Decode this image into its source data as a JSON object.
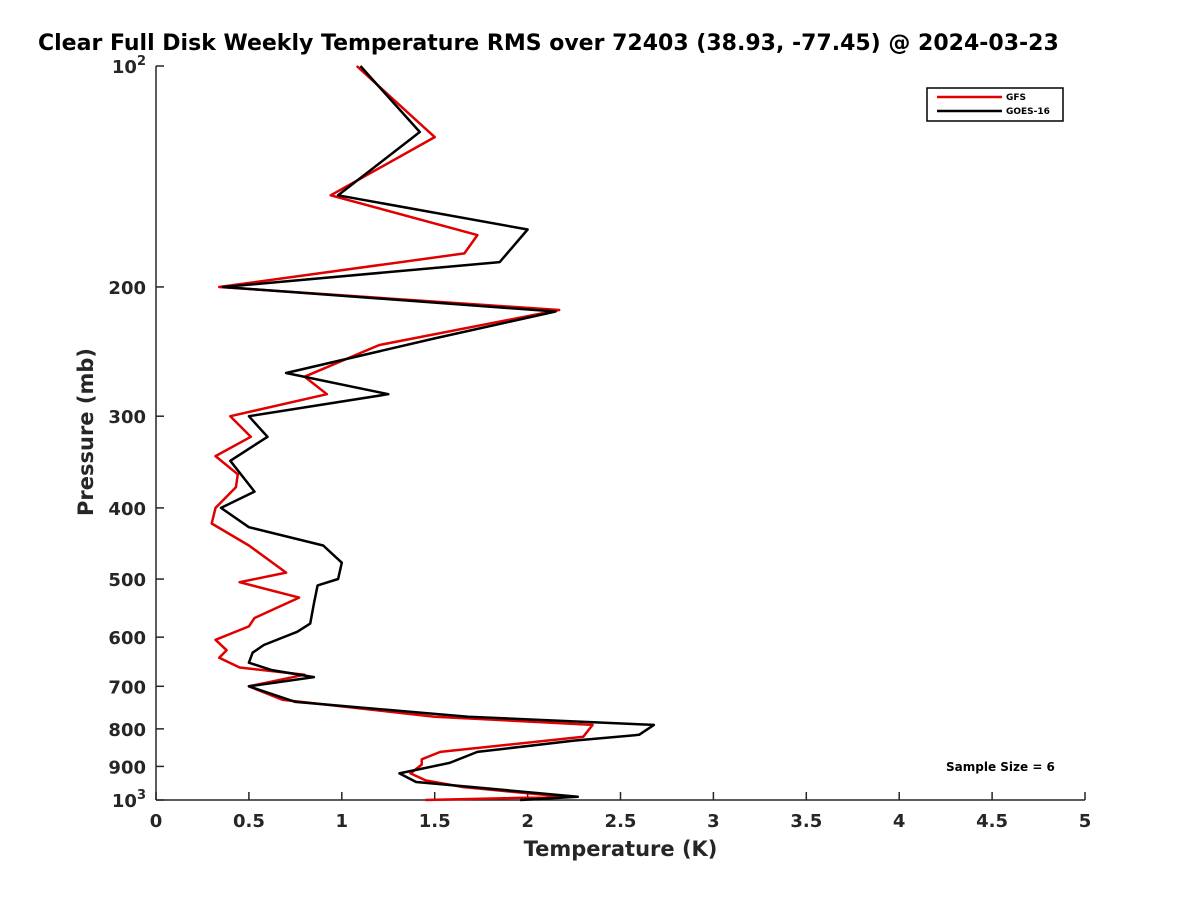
{
  "chart_data": {
    "type": "line",
    "title": "Clear Full Disk Weekly Temperature RMS over 72403 (38.93, -77.45) @ 2024-03-23",
    "xlabel": "Temperature (K)",
    "ylabel": "Pressure (mb)",
    "xlim": [
      0,
      5
    ],
    "ylim": [
      100,
      1000
    ],
    "y_scale": "log",
    "y_reversed": true,
    "x_ticks": [
      "0",
      "0.5",
      "1",
      "1.5",
      "2",
      "2.5",
      "3",
      "3.5",
      "4",
      "4.5",
      "5"
    ],
    "y_ticks": [
      {
        "value": 100,
        "base": "10",
        "exp": "2"
      },
      {
        "value": 200,
        "label": "200"
      },
      {
        "value": 300,
        "label": "300"
      },
      {
        "value": 400,
        "label": "400"
      },
      {
        "value": 500,
        "label": "500"
      },
      {
        "value": 600,
        "label": "600"
      },
      {
        "value": 700,
        "label": "700"
      },
      {
        "value": 800,
        "label": "800"
      },
      {
        "value": 900,
        "label": "900"
      },
      {
        "value": 1000,
        "base": "10",
        "exp": "3"
      }
    ],
    "grid": false,
    "legend_position": "top-right",
    "annotations": [
      "Sample Size = 6"
    ],
    "series": [
      {
        "name": "GFS",
        "color": "#e00000",
        "points": [
          {
            "x": 1.08,
            "p": 100
          },
          {
            "x": 1.5,
            "p": 125
          },
          {
            "x": 0.94,
            "p": 150
          },
          {
            "x": 1.73,
            "p": 170
          },
          {
            "x": 1.66,
            "p": 180
          },
          {
            "x": 0.34,
            "p": 200
          },
          {
            "x": 2.17,
            "p": 215
          },
          {
            "x": 1.2,
            "p": 240
          },
          {
            "x": 0.8,
            "p": 265
          },
          {
            "x": 0.92,
            "p": 280
          },
          {
            "x": 0.4,
            "p": 300
          },
          {
            "x": 0.51,
            "p": 320
          },
          {
            "x": 0.32,
            "p": 340
          },
          {
            "x": 0.44,
            "p": 360
          },
          {
            "x": 0.43,
            "p": 375
          },
          {
            "x": 0.32,
            "p": 400
          },
          {
            "x": 0.3,
            "p": 420
          },
          {
            "x": 0.5,
            "p": 450
          },
          {
            "x": 0.7,
            "p": 490
          },
          {
            "x": 0.45,
            "p": 505
          },
          {
            "x": 0.77,
            "p": 530
          },
          {
            "x": 0.53,
            "p": 565
          },
          {
            "x": 0.5,
            "p": 580
          },
          {
            "x": 0.32,
            "p": 605
          },
          {
            "x": 0.38,
            "p": 625
          },
          {
            "x": 0.34,
            "p": 640
          },
          {
            "x": 0.45,
            "p": 660
          },
          {
            "x": 0.8,
            "p": 675
          },
          {
            "x": 0.5,
            "p": 700
          },
          {
            "x": 0.68,
            "p": 730
          },
          {
            "x": 1.5,
            "p": 770
          },
          {
            "x": 2.35,
            "p": 790
          },
          {
            "x": 2.3,
            "p": 820
          },
          {
            "x": 1.53,
            "p": 860
          },
          {
            "x": 1.43,
            "p": 880
          },
          {
            "x": 1.43,
            "p": 895
          },
          {
            "x": 1.37,
            "p": 920
          },
          {
            "x": 1.45,
            "p": 940
          },
          {
            "x": 1.65,
            "p": 960
          },
          {
            "x": 2.2,
            "p": 990
          },
          {
            "x": 1.45,
            "p": 1000
          }
        ]
      },
      {
        "name": "GOES-16",
        "color": "#000000",
        "points": [
          {
            "x": 1.1,
            "p": 100
          },
          {
            "x": 1.42,
            "p": 123
          },
          {
            "x": 0.98,
            "p": 150
          },
          {
            "x": 2.0,
            "p": 167
          },
          {
            "x": 1.85,
            "p": 185
          },
          {
            "x": 0.36,
            "p": 200
          },
          {
            "x": 2.15,
            "p": 216
          },
          {
            "x": 1.5,
            "p": 235
          },
          {
            "x": 0.7,
            "p": 262
          },
          {
            "x": 1.25,
            "p": 280
          },
          {
            "x": 0.5,
            "p": 300
          },
          {
            "x": 0.6,
            "p": 320
          },
          {
            "x": 0.4,
            "p": 345
          },
          {
            "x": 0.53,
            "p": 380
          },
          {
            "x": 0.35,
            "p": 400
          },
          {
            "x": 0.5,
            "p": 425
          },
          {
            "x": 0.9,
            "p": 450
          },
          {
            "x": 1.0,
            "p": 475
          },
          {
            "x": 0.98,
            "p": 500
          },
          {
            "x": 0.87,
            "p": 510
          },
          {
            "x": 0.85,
            "p": 540
          },
          {
            "x": 0.83,
            "p": 575
          },
          {
            "x": 0.76,
            "p": 590
          },
          {
            "x": 0.58,
            "p": 615
          },
          {
            "x": 0.52,
            "p": 630
          },
          {
            "x": 0.5,
            "p": 650
          },
          {
            "x": 0.62,
            "p": 665
          },
          {
            "x": 0.85,
            "p": 680
          },
          {
            "x": 0.5,
            "p": 700
          },
          {
            "x": 0.75,
            "p": 735
          },
          {
            "x": 1.68,
            "p": 770
          },
          {
            "x": 2.68,
            "p": 790
          },
          {
            "x": 2.6,
            "p": 815
          },
          {
            "x": 2.25,
            "p": 830
          },
          {
            "x": 1.73,
            "p": 860
          },
          {
            "x": 1.58,
            "p": 890
          },
          {
            "x": 1.31,
            "p": 920
          },
          {
            "x": 1.4,
            "p": 945
          },
          {
            "x": 1.7,
            "p": 960
          },
          {
            "x": 2.27,
            "p": 990
          },
          {
            "x": 1.96,
            "p": 1000
          }
        ]
      }
    ]
  }
}
